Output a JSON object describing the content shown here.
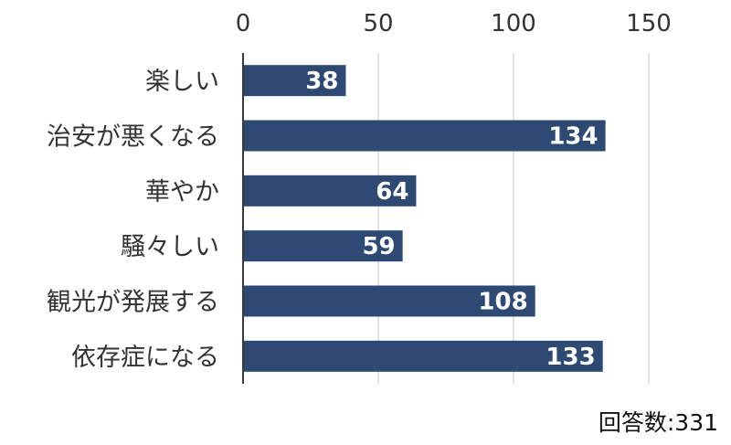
{
  "chart_data": {
    "type": "bar",
    "orientation": "horizontal",
    "categories": [
      "楽しい",
      "治安が悪くなる",
      "華やか",
      "騒々しい",
      "観光が発展する",
      "依存症になる"
    ],
    "values": [
      38,
      134,
      64,
      59,
      108,
      133
    ],
    "title": "",
    "xlabel": "",
    "ylabel": "",
    "xlim": [
      0,
      150
    ],
    "x_ticks": [
      0,
      50,
      100,
      150
    ],
    "x_axis_position": "top",
    "grid": true,
    "legend": "none",
    "data_labels": "inside-end"
  },
  "colors": {
    "bar": "#2e4a72",
    "value_text": "#ffffff",
    "axis_line": "#3a3a3a",
    "grid_line": "#d0d0d0"
  },
  "footnote": "回答数:331"
}
